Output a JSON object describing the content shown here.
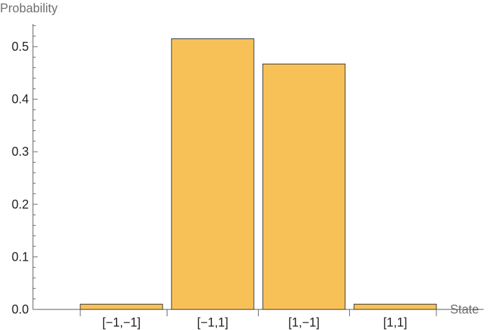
{
  "chart_data": {
    "type": "bar",
    "categories": [
      "[−1,−1]",
      "[−1,1]",
      "[1,−1]",
      "[1,1]"
    ],
    "values": [
      0.01,
      0.515,
      0.467,
      0.01
    ],
    "title": "",
    "xlabel": "State",
    "ylabel": "Probability",
    "ylim": [
      0,
      0.54
    ],
    "yticks": [
      "0.0",
      "0.1",
      "0.2",
      "0.3",
      "0.4",
      "0.5"
    ],
    "grid": false,
    "bar_color": "#F8C158"
  }
}
